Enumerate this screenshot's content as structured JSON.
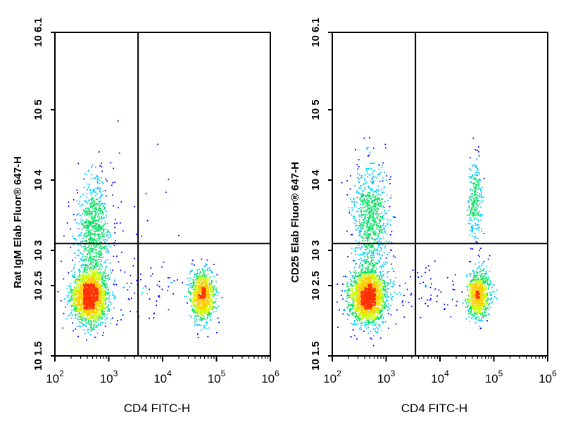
{
  "chart_data": [
    {
      "type": "scatter",
      "subtype": "flow-cytometry-density-dot-plot",
      "xlabel": "CD4 FITC-H",
      "ylabel": "Rat IgM Elab Fluor® 647-H",
      "x_scale": "log",
      "y_scale": "log",
      "xlim": [
        100,
        1000000
      ],
      "ylim": [
        31.6,
        1258925
      ],
      "x_ticks": [
        {
          "value": 100,
          "base": "10",
          "exp": "2"
        },
        {
          "value": 1000,
          "base": "10",
          "exp": "3"
        },
        {
          "value": 10000,
          "base": "10",
          "exp": "4"
        },
        {
          "value": 100000,
          "base": "10",
          "exp": "5"
        },
        {
          "value": 1000000,
          "base": "10",
          "exp": "6"
        }
      ],
      "y_ticks": [
        {
          "value": 31.6,
          "label": "10 1.5"
        },
        {
          "value": 316,
          "label": "10 2.5"
        },
        {
          "value": 1000,
          "label": "10 3"
        },
        {
          "value": 10000,
          "label": "10 4"
        },
        {
          "value": 100000,
          "label": "10 5"
        },
        {
          "value": 1258925,
          "label": "10 6.1"
        }
      ],
      "gate": {
        "x": 3500,
        "y": 1250
      },
      "populations": [
        {
          "x_center": 450,
          "y_center": 220,
          "spread_x": 0.17,
          "spread_y": 0.19,
          "count": 1900
        },
        {
          "x_center": 520,
          "y_center": 1800,
          "spread_x": 0.16,
          "spread_y": 0.4,
          "count": 750
        },
        {
          "x_center": 55000,
          "y_center": 230,
          "spread_x": 0.11,
          "spread_y": 0.17,
          "count": 950
        },
        {
          "x_center": 4000,
          "y_center": 250,
          "spread_x": 0.55,
          "spread_y": 0.2,
          "count": 80
        },
        {
          "x_center": 1500,
          "y_center": 5000,
          "spread_x": 0.5,
          "spread_y": 0.6,
          "count": 40
        }
      ],
      "density_colors": [
        "#0000ff",
        "#00c8ff",
        "#00e060",
        "#c8ff00",
        "#ffcc00",
        "#ff3000"
      ]
    },
    {
      "type": "scatter",
      "subtype": "flow-cytometry-density-dot-plot",
      "xlabel": "CD4 FITC-H",
      "ylabel": "CD25 Elab Fluor® 647-H",
      "x_scale": "log",
      "y_scale": "log",
      "xlim": [
        100,
        1000000
      ],
      "ylim": [
        31.6,
        1258925
      ],
      "x_ticks": [
        {
          "value": 100,
          "base": "10",
          "exp": "2"
        },
        {
          "value": 1000,
          "base": "10",
          "exp": "3"
        },
        {
          "value": 10000,
          "base": "10",
          "exp": "4"
        },
        {
          "value": 100000,
          "base": "10",
          "exp": "5"
        },
        {
          "value": 1000000,
          "base": "10",
          "exp": "6"
        }
      ],
      "y_ticks": [
        {
          "value": 31.6,
          "label": "10 1.5"
        },
        {
          "value": 316,
          "label": "10 2.5"
        },
        {
          "value": 1000,
          "label": "10 3"
        },
        {
          "value": 10000,
          "label": "10 4"
        },
        {
          "value": 100000,
          "label": "10 5"
        },
        {
          "value": 1258925,
          "label": "10 6.1"
        }
      ],
      "gate": {
        "x": 3500,
        "y": 1250
      },
      "populations": [
        {
          "x_center": 450,
          "y_center": 220,
          "spread_x": 0.17,
          "spread_y": 0.19,
          "count": 1900
        },
        {
          "x_center": 520,
          "y_center": 2500,
          "spread_x": 0.17,
          "spread_y": 0.42,
          "count": 800
        },
        {
          "x_center": 52000,
          "y_center": 230,
          "spread_x": 0.1,
          "spread_y": 0.16,
          "count": 800
        },
        {
          "x_center": 45000,
          "y_center": 5000,
          "spread_x": 0.07,
          "spread_y": 0.3,
          "count": 260
        },
        {
          "x_center": 4500,
          "y_center": 240,
          "spread_x": 0.55,
          "spread_y": 0.2,
          "count": 90
        }
      ],
      "density_colors": [
        "#0000ff",
        "#00c8ff",
        "#00e060",
        "#c8ff00",
        "#ffcc00",
        "#ff3000"
      ]
    }
  ]
}
